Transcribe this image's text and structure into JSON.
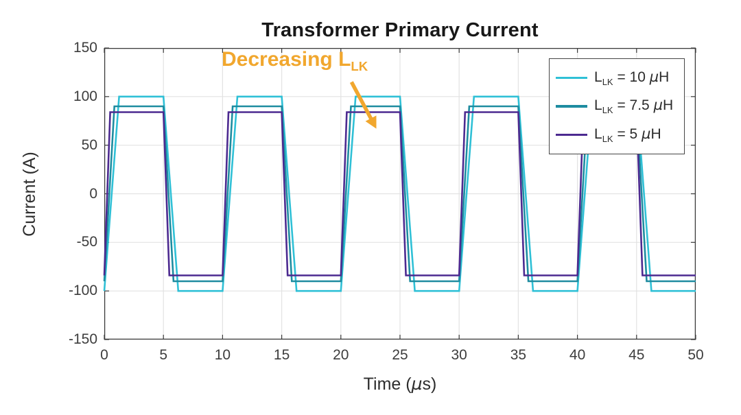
{
  "figure": {
    "title": "Transformer Primary Current",
    "background": "#ffffff"
  },
  "axes": {
    "ylabel": "Current (A)",
    "xlabel_pre": "Time (",
    "xlabel_mu": "µ",
    "xlabel_post": "s)"
  },
  "chart_data": {
    "type": "line",
    "title": "Transformer Primary Current",
    "xlabel": "Time (µs)",
    "ylabel": "Current (A)",
    "xlim": [
      0,
      50
    ],
    "ylim": [
      -150,
      150
    ],
    "xticks": [
      0,
      5,
      10,
      15,
      20,
      25,
      30,
      35,
      40,
      45,
      50
    ],
    "yticks": [
      150,
      100,
      50,
      0,
      -50,
      -100,
      -150
    ],
    "grid": true,
    "legend_position": "top-right",
    "waveform_note_period_us": 10,
    "series": [
      {
        "id": "llk-10uH",
        "name": "L_LK = 10 µH",
        "color": "#2FC0D6",
        "amplitude_A": 100,
        "transition_time_us": 1.25,
        "label": {
          "pre": "L",
          "sub": "LK",
          "mid": " = 10 ",
          "mu": "µ",
          "post": "H"
        },
        "points": [
          [
            0,
            -100
          ],
          [
            1.25,
            100
          ],
          [
            5,
            100
          ],
          [
            6.25,
            -100
          ],
          [
            10,
            -100
          ],
          [
            11.25,
            100
          ],
          [
            15,
            100
          ],
          [
            16.25,
            -100
          ],
          [
            20,
            -100
          ],
          [
            21.25,
            100
          ],
          [
            25,
            100
          ],
          [
            26.25,
            -100
          ],
          [
            30,
            -100
          ],
          [
            31.25,
            100
          ],
          [
            35,
            100
          ],
          [
            36.25,
            -100
          ],
          [
            40,
            -100
          ],
          [
            41.25,
            100
          ],
          [
            45,
            100
          ],
          [
            46.25,
            -100
          ],
          [
            50,
            -100
          ]
        ]
      },
      {
        "id": "llk-7p5uH",
        "name": "L_LK = 7.5 µH",
        "color": "#1E8CA0",
        "amplitude_A": 90,
        "transition_time_us": 0.85,
        "label": {
          "pre": "L",
          "sub": "LK",
          "mid": " = 7.5 ",
          "mu": "µ",
          "post": "H"
        },
        "points": [
          [
            0,
            -90
          ],
          [
            0.85,
            90
          ],
          [
            5,
            90
          ],
          [
            5.85,
            -90
          ],
          [
            10,
            -90
          ],
          [
            10.85,
            90
          ],
          [
            15,
            90
          ],
          [
            15.85,
            -90
          ],
          [
            20,
            -90
          ],
          [
            20.85,
            90
          ],
          [
            25,
            90
          ],
          [
            25.85,
            -90
          ],
          [
            30,
            -90
          ],
          [
            30.85,
            90
          ],
          [
            35,
            90
          ],
          [
            35.85,
            -90
          ],
          [
            40,
            -90
          ],
          [
            40.85,
            90
          ],
          [
            45,
            90
          ],
          [
            45.85,
            -90
          ],
          [
            50,
            -90
          ]
        ]
      },
      {
        "id": "llk-5uH",
        "name": "L_LK = 5 µH",
        "color": "#4C2A90",
        "amplitude_A": 84,
        "transition_time_us": 0.5,
        "label": {
          "pre": "L",
          "sub": "LK",
          "mid": " = 5 ",
          "mu": "µ",
          "post": "H"
        },
        "points": [
          [
            0,
            -84
          ],
          [
            0.5,
            84
          ],
          [
            5,
            84
          ],
          [
            5.5,
            -84
          ],
          [
            10,
            -84
          ],
          [
            10.5,
            84
          ],
          [
            15,
            84
          ],
          [
            15.5,
            -84
          ],
          [
            20,
            -84
          ],
          [
            20.5,
            84
          ],
          [
            25,
            84
          ],
          [
            25.5,
            -84
          ],
          [
            30,
            -84
          ],
          [
            30.5,
            84
          ],
          [
            35,
            84
          ],
          [
            35.5,
            -84
          ],
          [
            40,
            -84
          ],
          [
            40.5,
            84
          ],
          [
            45,
            84
          ],
          [
            45.5,
            -84
          ],
          [
            50,
            -84
          ]
        ]
      }
    ],
    "annotation": {
      "text_pre": "Decreasing L",
      "text_sub": "LK",
      "color": "#F1A72E",
      "arrow": {
        "from": [
          20.9,
          115
        ],
        "to": [
          23.0,
          67
        ]
      }
    }
  },
  "style_colors": {
    "grid": "#e2e2e2",
    "axes": "#3a3a3a"
  }
}
